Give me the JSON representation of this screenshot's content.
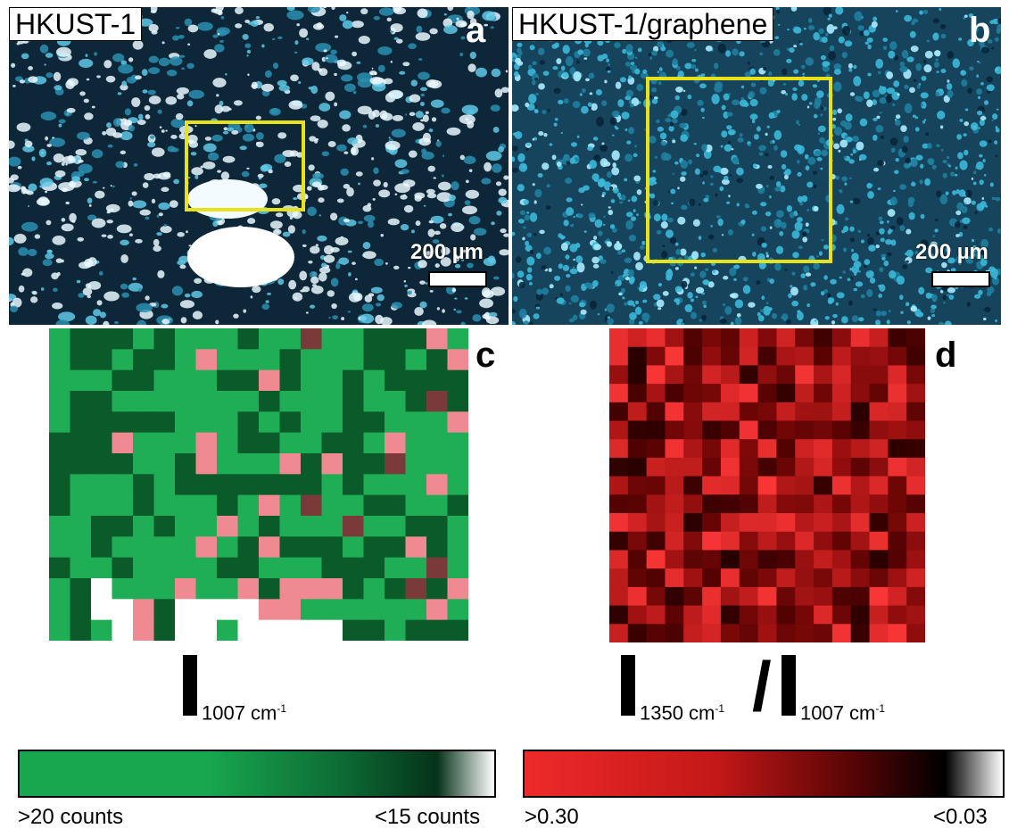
{
  "panels": {
    "a": {
      "letter": "a",
      "tag": "HKUST-1",
      "scale_bar": "200 µm"
    },
    "b": {
      "letter": "b",
      "tag": "HKUST-1/graphene",
      "scale_bar": "200 µm"
    },
    "c": {
      "letter": "c"
    },
    "d": {
      "letter": "d"
    }
  },
  "formulas": {
    "c": {
      "sub": "1007 cm",
      "sup": "-1"
    },
    "d": {
      "num_sub": "1350 cm",
      "num_sup": "-1",
      "slash": "/",
      "den_sub": "1007 cm",
      "den_sup": "-1"
    }
  },
  "colorbars": {
    "green": {
      "left_label": ">20 counts",
      "right_label": "<15 counts",
      "stops": [
        "#18a64f",
        "#18a64f",
        "#0d6b33",
        "#06321a",
        "#ffffff"
      ]
    },
    "red": {
      "left_label": ">0.30",
      "right_label": "<0.03",
      "stops": [
        "#ee2a2a",
        "#c41818",
        "#5a0505",
        "#000000",
        "#ffffff"
      ]
    }
  },
  "colors": {
    "highlight_box": "#e8e21a",
    "map_green_light": "#1fae55",
    "map_green_dark": "#0b5a2a",
    "map_pink": "#f08a92",
    "map_red_bright": "#f03535",
    "map_red_dark": "#1a0202"
  }
}
